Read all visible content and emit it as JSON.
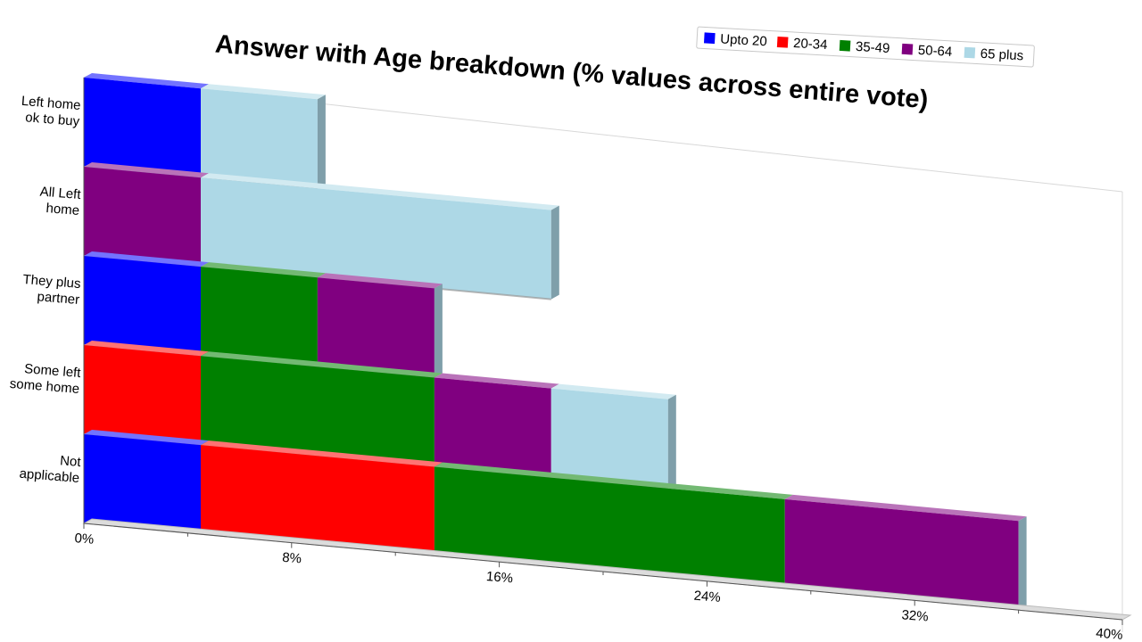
{
  "chart_data": {
    "type": "bar",
    "orientation": "horizontal",
    "stacked": true,
    "title": "Answer with Age breakdown (% values across entire vote)",
    "categories": [
      [
        "Left home",
        "ok to buy"
      ],
      [
        "All Left",
        "home"
      ],
      [
        "They plus",
        "partner"
      ],
      [
        "Some left",
        "some home"
      ],
      [
        "Not",
        "applicable"
      ]
    ],
    "series": [
      {
        "name": "Upto 20",
        "color": "#0000ff",
        "values": [
          4.5,
          0,
          4.5,
          0,
          4.5
        ]
      },
      {
        "name": "20-34",
        "color": "#ff0000",
        "values": [
          0,
          0,
          0,
          4.5,
          9.0
        ]
      },
      {
        "name": "35-49",
        "color": "#008000",
        "values": [
          0,
          0,
          4.5,
          9.0,
          13.5
        ]
      },
      {
        "name": "50-64",
        "color": "#800080",
        "values": [
          0,
          4.5,
          4.5,
          4.5,
          9.0
        ]
      },
      {
        "name": "65 plus",
        "color": "#add8e6",
        "values": [
          4.5,
          13.5,
          0,
          4.5,
          0
        ]
      }
    ],
    "xlim": [
      0,
      40
    ],
    "xticks": [
      "0%",
      "8%",
      "16%",
      "24%",
      "32%",
      "40%"
    ],
    "legend_position": "top-right",
    "grid": false
  }
}
